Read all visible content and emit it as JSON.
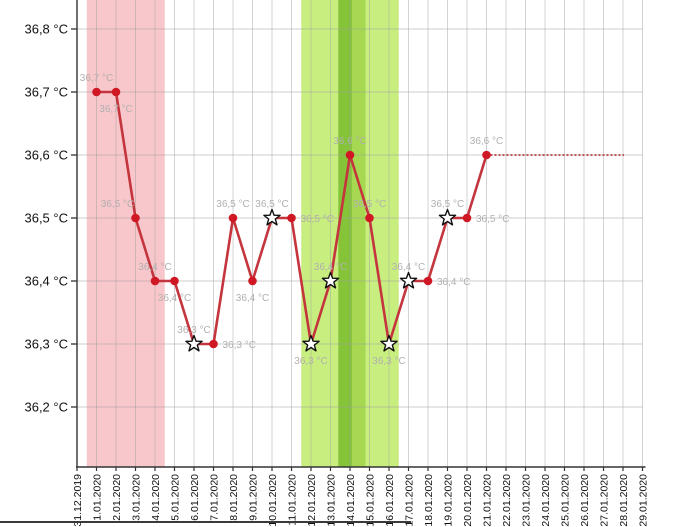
{
  "chart_data": {
    "type": "line",
    "unit": "°C",
    "y_axis": {
      "min": 36.2,
      "max": 36.8,
      "step": 0.1,
      "ticks": [
        {
          "temp": 36.8,
          "label": "36,8 °C"
        },
        {
          "temp": 36.7,
          "label": "36,7 °C"
        },
        {
          "temp": 36.6,
          "label": "36,6 °C"
        },
        {
          "temp": 36.5,
          "label": "36,5 °C"
        },
        {
          "temp": 36.4,
          "label": "36,4 °C"
        },
        {
          "temp": 36.3,
          "label": "36,3 °C"
        },
        {
          "temp": 36.2,
          "label": "36,2 °C"
        }
      ]
    },
    "x_labels": [
      "31.12.2019",
      "1.01.2020",
      "2.01.2020",
      "3.01.2020",
      "4.01.2020",
      "5.01.2020",
      "6.01.2020",
      "7.01.2020",
      "8.01.2020",
      "9.01.2020",
      "10.01.2020",
      "11.01.2020",
      "12.01.2020",
      "13.01.2020",
      "14.01.2020",
      "15.01.2020",
      "16.01.2020",
      "17.01.2020",
      "18.01.2020",
      "19.01.2020",
      "20.01.2020",
      "21.01.2020",
      "22.01.2020",
      "23.01.2020",
      "24.01.2020",
      "25.01.2020",
      "26.01.2020",
      "27.01.2020",
      "28.01.2020",
      "29.01.2020"
    ],
    "bands": [
      {
        "name": "band-menstruation",
        "from_day": 0.5,
        "to_day": 4.5,
        "color": "#f8c7cb"
      },
      {
        "name": "band-fertile-window",
        "from_day": 11.5,
        "to_day": 16.5,
        "color": "#c9ee80"
      },
      {
        "name": "band-ovulation-dark",
        "from_day": 13.4,
        "to_day": 14.1,
        "color": "#85c438"
      },
      {
        "name": "band-ovulation-mid",
        "from_day": 14.1,
        "to_day": 14.8,
        "color": "#a6d951"
      }
    ],
    "series": [
      {
        "name": "temperature",
        "color": "#c4353e",
        "points": [
          {
            "day": 1,
            "temp": 36.7,
            "label": "36,7 °C",
            "marker": "dot",
            "label_pos": "above"
          },
          {
            "day": 2,
            "temp": 36.7,
            "label": "36,7 °C",
            "marker": "dot",
            "label_pos": "below"
          },
          {
            "day": 3,
            "temp": 36.5,
            "label": "36,5 °C",
            "marker": "dot",
            "label_pos": "above",
            "label_dx": -18
          },
          {
            "day": 4,
            "temp": 36.4,
            "label": "36,4 °C",
            "marker": "dot",
            "label_pos": "above"
          },
          {
            "day": 5,
            "temp": 36.4,
            "label": "36,4 °C",
            "marker": "dot",
            "label_pos": "below"
          },
          {
            "day": 6,
            "temp": 36.3,
            "label": "36,3 °C",
            "marker": "star",
            "label_pos": "above"
          },
          {
            "day": 7,
            "temp": 36.3,
            "label": "36,3 °C",
            "marker": "dot",
            "label_pos": "right"
          },
          {
            "day": 8,
            "temp": 36.5,
            "label": "36,5 °C",
            "marker": "dot",
            "label_pos": "above"
          },
          {
            "day": 9,
            "temp": 36.4,
            "label": "36,4 °C",
            "marker": "dot",
            "label_pos": "below"
          },
          {
            "day": 10,
            "temp": 36.5,
            "label": "36,5 °C",
            "marker": "star",
            "label_pos": "above"
          },
          {
            "day": 11,
            "temp": 36.5,
            "label": "36,5 °C",
            "marker": "dot",
            "label_pos": "right"
          },
          {
            "day": 12,
            "temp": 36.3,
            "label": "36,3 °C",
            "marker": "star",
            "label_pos": "below"
          },
          {
            "day": 13,
            "temp": 36.4,
            "label": "36,4 °C",
            "marker": "star",
            "label_pos": "above"
          },
          {
            "day": 14,
            "temp": 36.6,
            "label": "36,6 °C",
            "marker": "dot",
            "label_pos": "above"
          },
          {
            "day": 15,
            "temp": 36.5,
            "label": "36,5 °C",
            "marker": "dot",
            "label_pos": "above"
          },
          {
            "day": 16,
            "temp": 36.3,
            "label": "36,3 °C",
            "marker": "star",
            "label_pos": "below"
          },
          {
            "day": 17,
            "temp": 36.4,
            "label": "36,4 °C",
            "marker": "star",
            "label_pos": "above"
          },
          {
            "day": 18,
            "temp": 36.4,
            "label": "36,4 °C",
            "marker": "dot",
            "label_pos": "right"
          },
          {
            "day": 19,
            "temp": 36.5,
            "label": "36,5 °C",
            "marker": "star",
            "label_pos": "above"
          },
          {
            "day": 20,
            "temp": 36.5,
            "label": "36,5 °C",
            "marker": "dot",
            "label_pos": "right"
          },
          {
            "day": 21,
            "temp": 36.6,
            "label": "36,6 °C",
            "marker": "dot",
            "label_pos": "above"
          }
        ]
      }
    ],
    "projection": {
      "from_day": 21,
      "to_day": 28,
      "temp": 36.6,
      "color": "#c2545c"
    },
    "colors": {
      "grid": "#9e9e9e",
      "axis": "#333333",
      "point": "#d01824",
      "star_fill": "#ffffff",
      "star_stroke": "#111111",
      "point_label": "#b2afaf",
      "axis_text": "#111111"
    }
  }
}
